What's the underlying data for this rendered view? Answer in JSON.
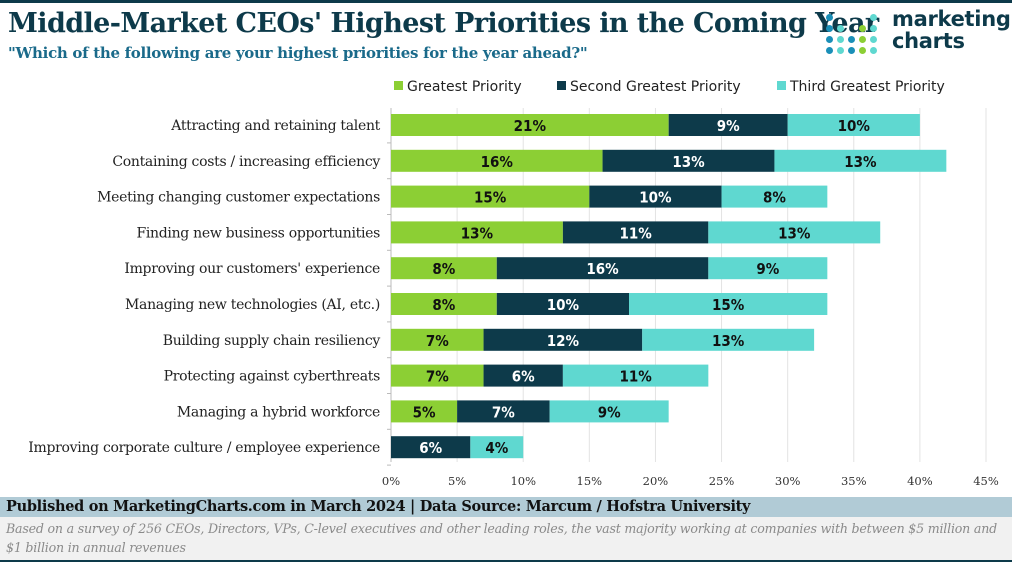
{
  "header": {
    "title": "Middle-Market CEOs' Highest Priorities in the Coming Year",
    "subtitle": "\"Which of the following are your highest priorities for the year ahead?\"",
    "logo_text": [
      "marketing",
      "charts"
    ]
  },
  "chart_data": {
    "type": "bar",
    "orientation": "horizontal",
    "stacked": true,
    "title": "Middle-Market CEOs' Highest Priorities in the Coming Year",
    "categories": [
      "Attracting and retaining talent",
      "Containing costs / increasing efficiency",
      "Meeting changing customer expectations",
      "Finding new business opportunities",
      "Improving our customers' experience",
      "Managing new technologies (AI, etc.)",
      "Building supply chain resiliency",
      "Protecting against cyberthreats",
      "Managing a hybrid workforce",
      "Improving corporate culture / employee experience"
    ],
    "series": [
      {
        "name": "Greatest Priority",
        "color": "#8ccf34",
        "label_color": "#111111",
        "values": [
          21,
          16,
          15,
          13,
          8,
          8,
          7,
          7,
          5,
          0
        ]
      },
      {
        "name": "Second Greatest Priority",
        "color": "#0d3a4a",
        "label_color": "#ffffff",
        "values": [
          9,
          13,
          10,
          11,
          16,
          10,
          12,
          6,
          7,
          6
        ]
      },
      {
        "name": "Third Greatest Priority",
        "color": "#5fd8d0",
        "label_color": "#111111",
        "values": [
          10,
          13,
          8,
          13,
          9,
          15,
          13,
          11,
          9,
          4
        ]
      }
    ],
    "xlim": [
      0,
      45
    ],
    "xticks": [
      "0%",
      "5%",
      "10%",
      "15%",
      "20%",
      "25%",
      "30%",
      "35%",
      "40%",
      "45%"
    ],
    "grid": true,
    "legend_position": "top"
  },
  "footer": {
    "published": "Published on MarketingCharts.com in March 2024 | Data Source: Marcum / Hofstra University",
    "note": "Based on a survey of 256 CEOs, Directors, VPs, C-level executives and other leading roles, the vast majority working at companies with between $5 million and $1 billion in annual revenues"
  }
}
